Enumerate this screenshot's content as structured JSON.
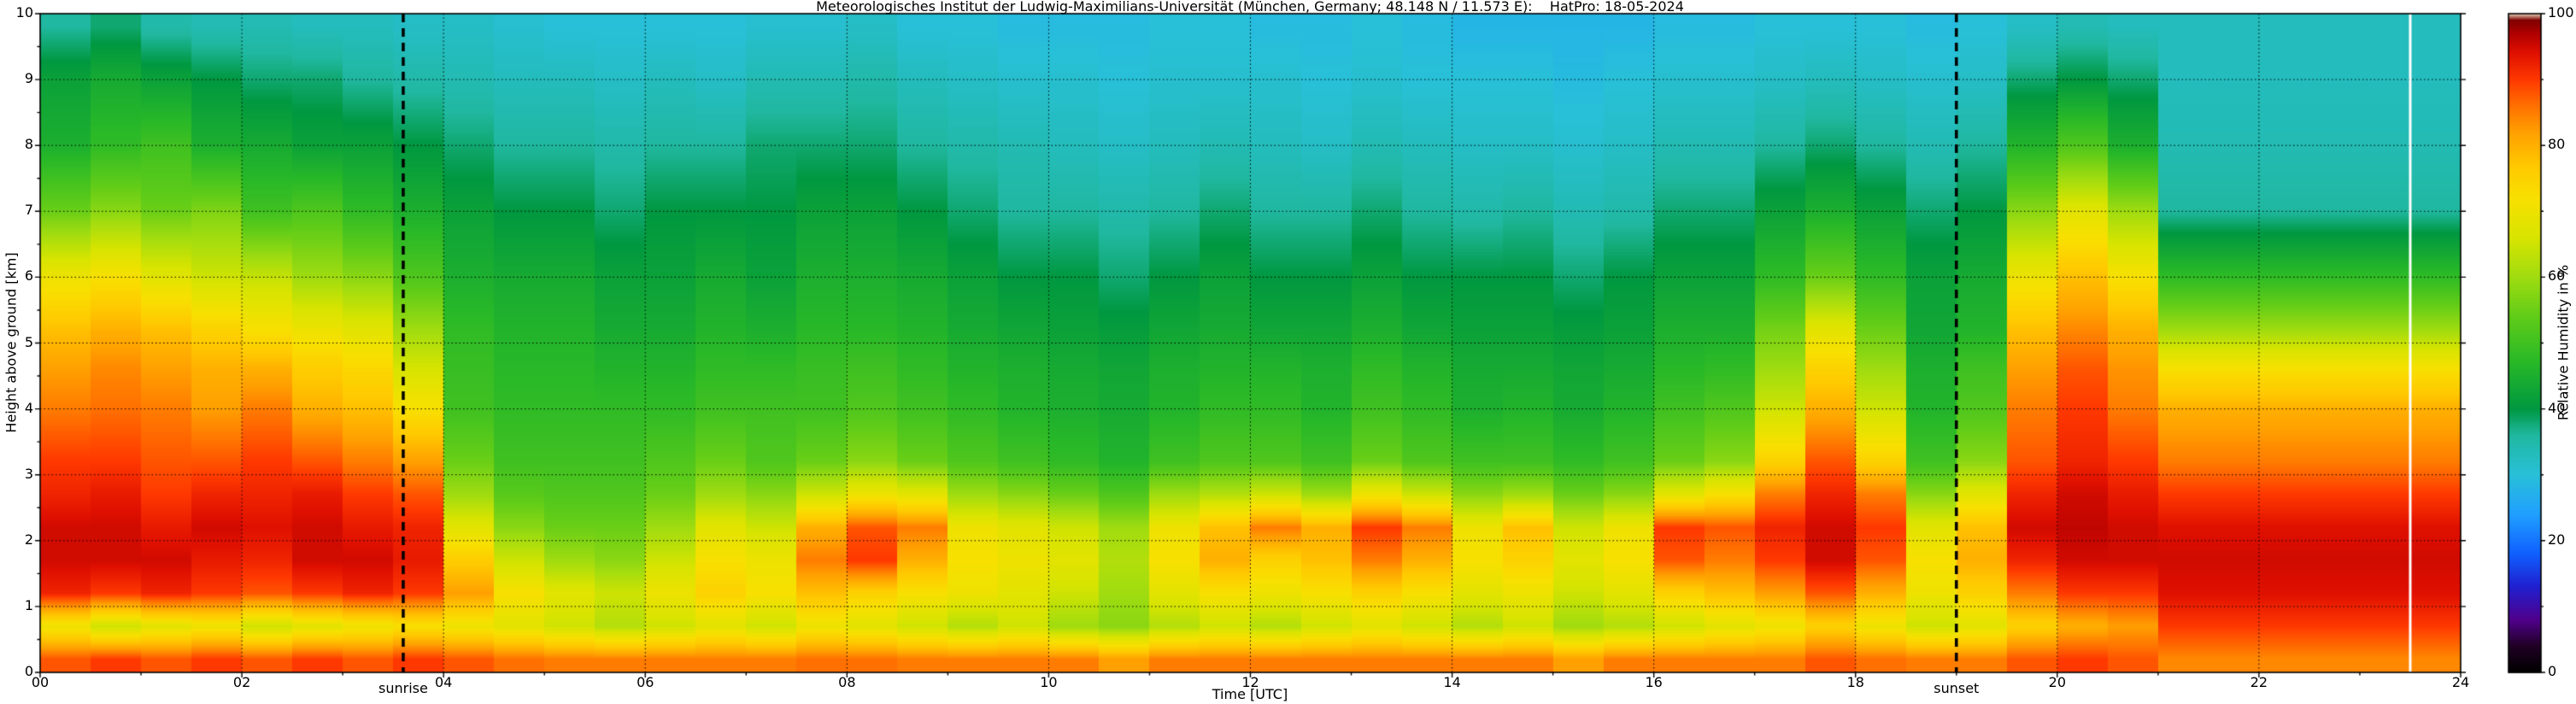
{
  "chart_data": {
    "type": "heatmap",
    "title": "Meteorologisches Institut der Ludwig-Maximilians-Universität (München, Germany; 48.148 N / 11.573 E):    HatPro: 18-05-2024",
    "xlabel": "Time [UTC]",
    "ylabel": "Height above ground [km]",
    "colorbar_label": "Relative Humidity in %",
    "xlim": [
      0,
      24
    ],
    "ylim": [
      0,
      10
    ],
    "zlim": [
      0,
      100
    ],
    "grid_on": true,
    "x_ticks": {
      "values": [
        0,
        2,
        4,
        6,
        8,
        10,
        12,
        14,
        16,
        18,
        20,
        22,
        24
      ],
      "labels": [
        "00",
        "02",
        "04",
        "06",
        "08",
        "10",
        "12",
        "14",
        "16",
        "18",
        "20",
        "22",
        "24"
      ]
    },
    "y_ticks": {
      "values": [
        0,
        1,
        2,
        3,
        4,
        5,
        6,
        7,
        8,
        9,
        10
      ],
      "labels": [
        "0",
        "1",
        "2",
        "3",
        "4",
        "5",
        "6",
        "7",
        "8",
        "9",
        "10"
      ]
    },
    "colorbar_ticks": {
      "values": [
        0,
        20,
        40,
        60,
        80,
        100
      ],
      "labels": [
        "0",
        "20",
        "40",
        "60",
        "80",
        "100"
      ]
    },
    "annotations": [
      {
        "label": "sunrise",
        "x": 3.6,
        "style": "dashed-black"
      },
      {
        "label": "sunset",
        "x": 19.0,
        "style": "dashed-black"
      },
      {
        "label": "",
        "x": 23.5,
        "style": "solid-white"
      }
    ],
    "colormap_stops": [
      [
        0,
        "#000000"
      ],
      [
        4,
        "#200024"
      ],
      [
        8,
        "#50008c"
      ],
      [
        13,
        "#2020d0"
      ],
      [
        18,
        "#1060ff"
      ],
      [
        24,
        "#20a0ff"
      ],
      [
        30,
        "#28c0d8"
      ],
      [
        36,
        "#20b8a0"
      ],
      [
        40,
        "#009840"
      ],
      [
        47,
        "#28b828"
      ],
      [
        54,
        "#60cc18"
      ],
      [
        60,
        "#a0dc10"
      ],
      [
        66,
        "#d8e400"
      ],
      [
        72,
        "#f8e000"
      ],
      [
        77,
        "#ffc800"
      ],
      [
        82,
        "#ffa000"
      ],
      [
        86,
        "#ff7000"
      ],
      [
        90,
        "#ff3800"
      ],
      [
        94,
        "#e01000"
      ],
      [
        97,
        "#b00000"
      ],
      [
        99,
        "#800000"
      ],
      [
        100,
        "#e8dcc0"
      ]
    ],
    "x_start": 0,
    "x_step": 0.5,
    "heights": [
      0.2,
      0.7,
      1.2,
      1.7,
      2.2,
      2.7,
      3.2,
      4.0,
      4.6,
      5.2,
      6.0,
      7.0,
      8.0,
      9.0,
      9.8
    ],
    "columns": [
      [
        88,
        70,
        92,
        95,
        95,
        92,
        90,
        85,
        82,
        78,
        70,
        55,
        45,
        42,
        36
      ],
      [
        90,
        65,
        90,
        95,
        95,
        93,
        90,
        86,
        84,
        80,
        72,
        58,
        48,
        44,
        38
      ],
      [
        88,
        68,
        92,
        95,
        93,
        90,
        88,
        85,
        82,
        78,
        68,
        55,
        50,
        42,
        35
      ],
      [
        90,
        70,
        90,
        93,
        95,
        92,
        88,
        82,
        80,
        75,
        65,
        57,
        45,
        40,
        34
      ],
      [
        88,
        65,
        88,
        92,
        94,
        92,
        90,
        85,
        80,
        72,
        64,
        50,
        44,
        38,
        34
      ],
      [
        90,
        68,
        90,
        95,
        95,
        93,
        88,
        80,
        76,
        70,
        60,
        52,
        42,
        38,
        33
      ],
      [
        88,
        70,
        92,
        95,
        93,
        90,
        85,
        78,
        74,
        68,
        58,
        48,
        42,
        36,
        33
      ],
      [
        90,
        72,
        90,
        93,
        92,
        88,
        82,
        72,
        66,
        60,
        52,
        45,
        40,
        35,
        32
      ],
      [
        88,
        70,
        82,
        76,
        68,
        60,
        55,
        50,
        49,
        48,
        45,
        42,
        38,
        34,
        32
      ],
      [
        86,
        68,
        72,
        65,
        58,
        53,
        50,
        48,
        47,
        46,
        44,
        40,
        36,
        33,
        31
      ],
      [
        85,
        65,
        68,
        60,
        55,
        52,
        50,
        48,
        47,
        46,
        44,
        40,
        36,
        33,
        30
      ],
      [
        85,
        62,
        65,
        58,
        55,
        52,
        50,
        48,
        46,
        44,
        42,
        38,
        35,
        32,
        30
      ],
      [
        85,
        65,
        70,
        65,
        60,
        55,
        52,
        48,
        46,
        44,
        42,
        40,
        36,
        33,
        30
      ],
      [
        85,
        68,
        75,
        72,
        68,
        60,
        55,
        50,
        48,
        46,
        44,
        40,
        36,
        32,
        30
      ],
      [
        85,
        65,
        72,
        70,
        65,
        58,
        52,
        50,
        48,
        45,
        42,
        40,
        38,
        34,
        31
      ],
      [
        86,
        70,
        78,
        85,
        80,
        65,
        55,
        50,
        49,
        47,
        45,
        42,
        38,
        34,
        31
      ],
      [
        86,
        68,
        75,
        90,
        88,
        70,
        58,
        52,
        50,
        47,
        45,
        42,
        38,
        35,
        32
      ],
      [
        85,
        65,
        72,
        80,
        85,
        68,
        55,
        50,
        48,
        46,
        44,
        40,
        36,
        33,
        30
      ],
      [
        85,
        62,
        70,
        72,
        70,
        60,
        52,
        48,
        46,
        44,
        42,
        38,
        35,
        32,
        30
      ],
      [
        85,
        65,
        68,
        70,
        68,
        58,
        50,
        46,
        45,
        43,
        40,
        36,
        34,
        31,
        29
      ],
      [
        85,
        60,
        65,
        68,
        65,
        55,
        48,
        45,
        44,
        42,
        40,
        36,
        33,
        31,
        29
      ],
      [
        82,
        58,
        60,
        62,
        60,
        52,
        46,
        44,
        43,
        41,
        38,
        35,
        32,
        30,
        29
      ],
      [
        85,
        62,
        68,
        72,
        70,
        60,
        50,
        46,
        45,
        43,
        40,
        36,
        33,
        31,
        30
      ],
      [
        85,
        65,
        72,
        80,
        78,
        62,
        52,
        48,
        46,
        44,
        42,
        38,
        34,
        31,
        30
      ],
      [
        85,
        62,
        70,
        75,
        85,
        65,
        52,
        48,
        46,
        43,
        40,
        36,
        33,
        31,
        29
      ],
      [
        85,
        65,
        72,
        78,
        80,
        60,
        50,
        46,
        45,
        43,
        40,
        36,
        32,
        30,
        29
      ],
      [
        85,
        68,
        75,
        85,
        90,
        70,
        55,
        50,
        48,
        45,
        42,
        38,
        34,
        31,
        30
      ],
      [
        85,
        65,
        72,
        80,
        85,
        65,
        52,
        48,
        46,
        43,
        40,
        36,
        33,
        30,
        29
      ],
      [
        85,
        62,
        68,
        72,
        70,
        58,
        50,
        45,
        44,
        42,
        40,
        35,
        32,
        30,
        28
      ],
      [
        85,
        65,
        70,
        75,
        78,
        60,
        50,
        46,
        44,
        42,
        40,
        36,
        32,
        30,
        28
      ],
      [
        82,
        60,
        65,
        68,
        65,
        55,
        48,
        44,
        43,
        41,
        38,
        34,
        31,
        29,
        28
      ],
      [
        85,
        62,
        68,
        72,
        70,
        58,
        50,
        46,
        44,
        42,
        40,
        35,
        32,
        30,
        28
      ],
      [
        85,
        65,
        75,
        88,
        90,
        68,
        55,
        50,
        47,
        45,
        42,
        38,
        34,
        31,
        29
      ],
      [
        85,
        68,
        78,
        85,
        88,
        72,
        58,
        52,
        48,
        45,
        42,
        38,
        34,
        31,
        29
      ],
      [
        85,
        70,
        82,
        90,
        92,
        85,
        75,
        65,
        60,
        56,
        48,
        42,
        36,
        32,
        30
      ],
      [
        88,
        75,
        88,
        95,
        95,
        92,
        88,
        80,
        75,
        68,
        55,
        45,
        38,
        33,
        30
      ],
      [
        86,
        70,
        80,
        88,
        90,
        85,
        75,
        65,
        60,
        55,
        48,
        42,
        36,
        32,
        30
      ],
      [
        85,
        65,
        70,
        72,
        68,
        58,
        50,
        46,
        45,
        43,
        42,
        38,
        34,
        31,
        29
      ],
      [
        85,
        68,
        75,
        80,
        78,
        68,
        58,
        52,
        50,
        46,
        44,
        40,
        36,
        32,
        30
      ],
      [
        88,
        75,
        85,
        92,
        95,
        92,
        88,
        85,
        82,
        78,
        70,
        58,
        46,
        38,
        32
      ],
      [
        90,
        80,
        90,
        95,
        96,
        95,
        92,
        90,
        88,
        84,
        78,
        68,
        52,
        40,
        34
      ],
      [
        88,
        82,
        90,
        95,
        95,
        93,
        90,
        85,
        83,
        80,
        72,
        60,
        45,
        38,
        33
      ],
      [
        84,
        90,
        94,
        95,
        94,
        90,
        85,
        80,
        72,
        60,
        48,
        36,
        34,
        33,
        33
      ],
      [
        84,
        90,
        94,
        95,
        94,
        90,
        85,
        80,
        72,
        60,
        48,
        36,
        34,
        33,
        33
      ],
      [
        84,
        90,
        94,
        95,
        94,
        90,
        85,
        80,
        72,
        60,
        48,
        36,
        34,
        33,
        33
      ],
      [
        84,
        90,
        94,
        95,
        94,
        90,
        85,
        80,
        72,
        60,
        48,
        36,
        34,
        33,
        33
      ],
      [
        84,
        90,
        94,
        95,
        94,
        90,
        85,
        80,
        72,
        60,
        48,
        36,
        34,
        33,
        33
      ],
      [
        84,
        90,
        94,
        95,
        94,
        90,
        85,
        80,
        72,
        60,
        48,
        36,
        34,
        33,
        33
      ]
    ]
  }
}
